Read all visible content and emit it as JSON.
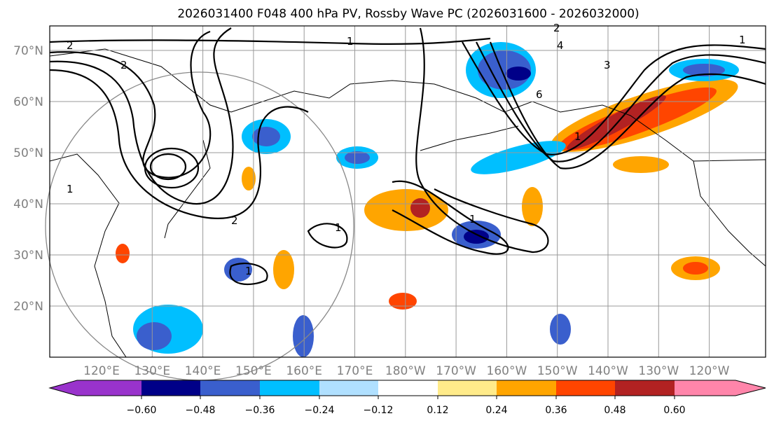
{
  "title": "2026031400 F048 400 hPa PV, Rossby Wave PC (2026031600 - 2026032000)",
  "chart_data": {
    "type": "map",
    "title": "2026031400 F048 400 hPa PV, Rossby Wave PC (2026031600 - 2026032000)",
    "lon_labels": [
      "120°E",
      "130°E",
      "140°E",
      "150°E",
      "160°E",
      "170°E",
      "180°W",
      "170°W",
      "160°W",
      "150°W",
      "140°W",
      "130°W",
      "120°W"
    ],
    "lat_labels": [
      "70°N",
      "60°N",
      "50°N",
      "40°N",
      "30°N",
      "20°N"
    ],
    "contour_labels": [
      "2",
      "1",
      "2",
      "1",
      "4",
      "6",
      "3",
      "2",
      "1",
      "1",
      "1",
      "1",
      "1",
      "2"
    ],
    "colorbar": {
      "ticks": [
        "−0.60",
        "−0.48",
        "−0.36",
        "−0.24",
        "−0.12",
        "0.12",
        "0.24",
        "0.36",
        "0.48",
        "0.60"
      ],
      "colors": [
        "#9933cc",
        "#000088",
        "#3a5fcd",
        "#00bfff",
        "#b0e0ff",
        "#ffffff",
        "#ffeb8a",
        "#ffa500",
        "#ff4500",
        "#b22222",
        "#ff85aa"
      ],
      "extend": "both"
    }
  }
}
